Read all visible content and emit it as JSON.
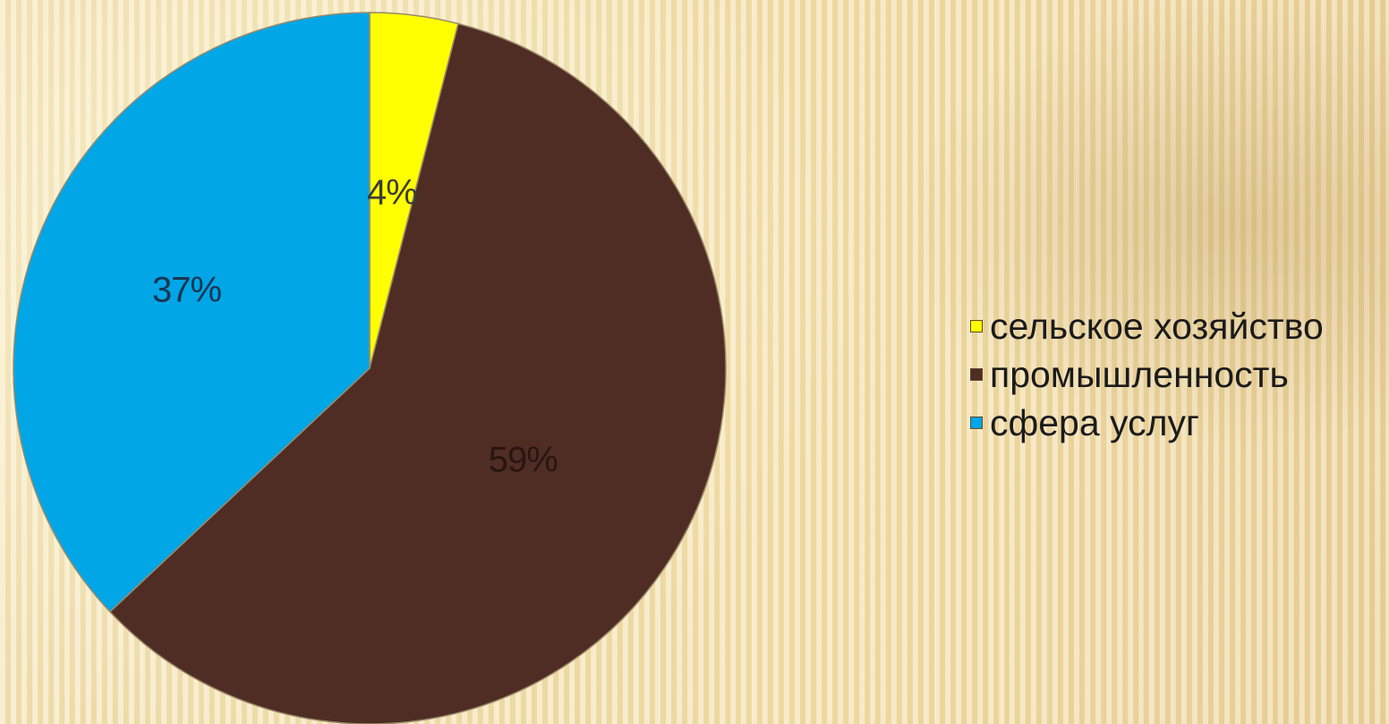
{
  "chart_data": {
    "type": "pie",
    "title": "",
    "categories": [
      "сельское хозяйство",
      "промышленность",
      "сфера услуг"
    ],
    "values": [
      4,
      59,
      37
    ],
    "value_labels": [
      "4%",
      "59%",
      "37%"
    ],
    "colors": [
      "#ffff00",
      "#4f2d24",
      "#00a6e6"
    ],
    "label_colors": [
      "#3a3a3a",
      "#2a1510",
      "#1c3550"
    ],
    "start_angle": "12 o'clock",
    "direction": "clockwise",
    "legend": {
      "position": "right",
      "items": [
        "сельское хозяйство",
        "промышленность",
        "сфера услуг"
      ]
    }
  }
}
